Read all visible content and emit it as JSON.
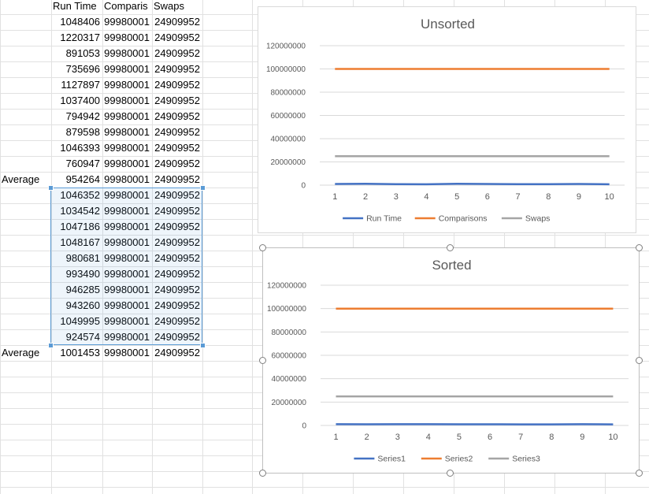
{
  "sheet": {
    "headers": [
      "Run Time",
      "Comparis",
      "Swaps"
    ],
    "unsorted_rows": [
      [
        "1048406",
        "99980001",
        "24909952"
      ],
      [
        "1220317",
        "99980001",
        "24909952"
      ],
      [
        "891053",
        "99980001",
        "24909952"
      ],
      [
        "735696",
        "99980001",
        "24909952"
      ],
      [
        "1127897",
        "99980001",
        "24909952"
      ],
      [
        "1037400",
        "99980001",
        "24909952"
      ],
      [
        "794942",
        "99980001",
        "24909952"
      ],
      [
        "879598",
        "99980001",
        "24909952"
      ],
      [
        "1046393",
        "99980001",
        "24909952"
      ],
      [
        "760947",
        "99980001",
        "24909952"
      ]
    ],
    "unsorted_average": {
      "label": "Average",
      "values": [
        "954264",
        "99980001",
        "24909952"
      ]
    },
    "sorted_rows": [
      [
        "1046352",
        "99980001",
        "24909952"
      ],
      [
        "1034542",
        "99980001",
        "24909952"
      ],
      [
        "1047186",
        "99980001",
        "24909952"
      ],
      [
        "1048167",
        "99980001",
        "24909952"
      ],
      [
        "980681",
        "99980001",
        "24909952"
      ],
      [
        "993490",
        "99980001",
        "24909952"
      ],
      [
        "946285",
        "99980001",
        "24909952"
      ],
      [
        "943260",
        "99980001",
        "24909952"
      ],
      [
        "1049995",
        "99980001",
        "24909952"
      ],
      [
        "924574",
        "99980001",
        "24909952"
      ]
    ],
    "sorted_average": {
      "label": "Average",
      "values": [
        "1001453",
        "99980001",
        "24909952"
      ]
    }
  },
  "chart_data": [
    {
      "type": "line",
      "title": "Unsorted",
      "x": [
        "1",
        "2",
        "3",
        "4",
        "5",
        "6",
        "7",
        "8",
        "9",
        "10"
      ],
      "ylim": [
        0,
        120000000
      ],
      "yticks": [
        "0",
        "20000000",
        "40000000",
        "60000000",
        "80000000",
        "100000000",
        "120000000"
      ],
      "grid": true,
      "legend": "bottom",
      "series": [
        {
          "name": "Run Time",
          "color": "#4472c4",
          "values": [
            1048406,
            1220317,
            891053,
            735696,
            1127897,
            1037400,
            794942,
            879598,
            1046393,
            760947
          ]
        },
        {
          "name": "Comparisons",
          "color": "#ed7d31",
          "values": [
            99980001,
            99980001,
            99980001,
            99980001,
            99980001,
            99980001,
            99980001,
            99980001,
            99980001,
            99980001
          ]
        },
        {
          "name": "Swaps",
          "color": "#a5a5a5",
          "values": [
            24909952,
            24909952,
            24909952,
            24909952,
            24909952,
            24909952,
            24909952,
            24909952,
            24909952,
            24909952
          ]
        }
      ]
    },
    {
      "type": "line",
      "title": "Sorted",
      "x": [
        "1",
        "2",
        "3",
        "4",
        "5",
        "6",
        "7",
        "8",
        "9",
        "10"
      ],
      "ylim": [
        0,
        120000000
      ],
      "yticks": [
        "0",
        "20000000",
        "40000000",
        "60000000",
        "80000000",
        "100000000",
        "120000000"
      ],
      "grid": true,
      "legend": "bottom",
      "series": [
        {
          "name": "Series1",
          "color": "#4472c4",
          "values": [
            1046352,
            1034542,
            1047186,
            1048167,
            980681,
            993490,
            946285,
            943260,
            1049995,
            924574
          ]
        },
        {
          "name": "Series2",
          "color": "#ed7d31",
          "values": [
            99980001,
            99980001,
            99980001,
            99980001,
            99980001,
            99980001,
            99980001,
            99980001,
            99980001,
            99980001
          ]
        },
        {
          "name": "Series3",
          "color": "#a5a5a5",
          "values": [
            24909952,
            24909952,
            24909952,
            24909952,
            24909952,
            24909952,
            24909952,
            24909952,
            24909952,
            24909952
          ]
        }
      ]
    }
  ]
}
